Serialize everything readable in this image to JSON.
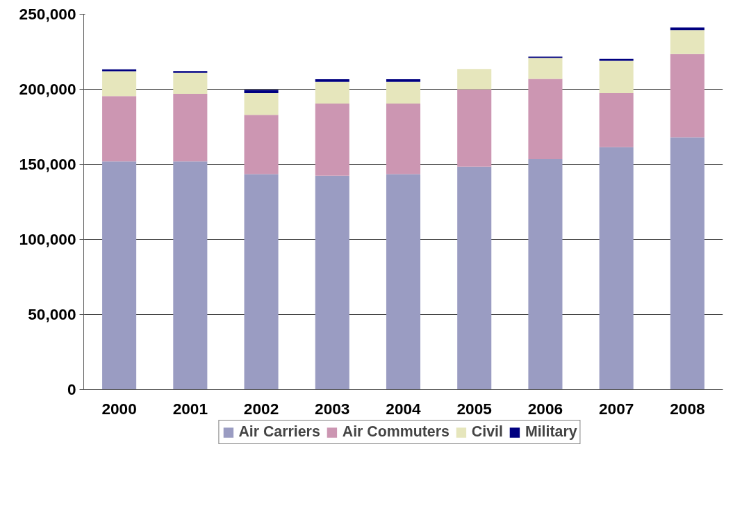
{
  "chart_data": {
    "type": "bar",
    "stacked": true,
    "categories": [
      "2000",
      "2001",
      "2002",
      "2003",
      "2004",
      "2005",
      "2006",
      "2007",
      "2008"
    ],
    "series": [
      {
        "name": "Air Carriers",
        "color": "#9a9cc2",
        "values": [
          152000,
          152000,
          143500,
          142500,
          143500,
          148500,
          153500,
          161500,
          168000
        ]
      },
      {
        "name": "Air Commuters",
        "color": "#cc96b2",
        "values": [
          43500,
          45000,
          39500,
          48000,
          47000,
          51500,
          53500,
          36000,
          55500
        ]
      },
      {
        "name": "Civil",
        "color": "#e6e6bc",
        "values": [
          16500,
          14000,
          14500,
          14500,
          14500,
          13500,
          14000,
          21500,
          16000
        ]
      },
      {
        "name": "Military",
        "color": "#000080",
        "values": [
          1300,
          1200,
          2100,
          1700,
          1700,
          0,
          800,
          1300,
          1700
        ]
      }
    ],
    "ylim": [
      0,
      250000
    ],
    "yticks": [
      {
        "value": 0,
        "label": "0"
      },
      {
        "value": 50000,
        "label": "50,000"
      },
      {
        "value": 100000,
        "label": "100,000"
      },
      {
        "value": 150000,
        "label": "150,000"
      },
      {
        "value": 200000,
        "label": "200,000"
      },
      {
        "value": 250000,
        "label": "250,000"
      }
    ],
    "grid": "y",
    "legend": "bottom"
  }
}
